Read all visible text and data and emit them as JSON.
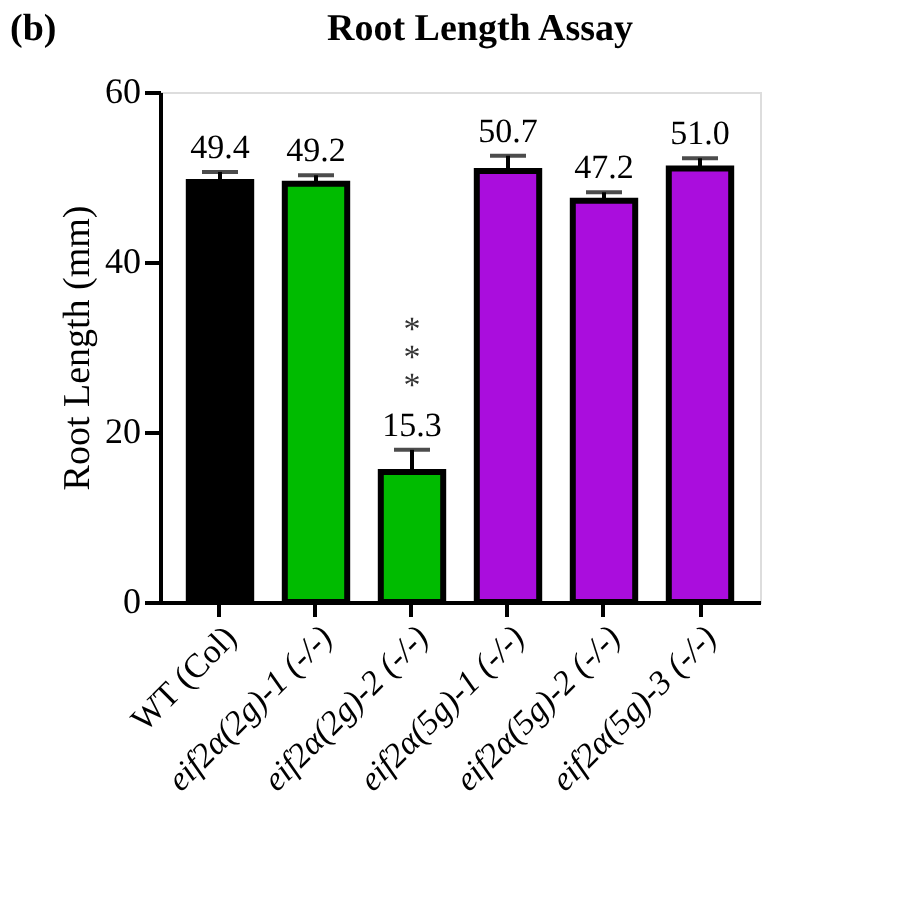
{
  "chart_data": {
    "type": "bar",
    "title": "Root Length Assay",
    "ylabel": "Root Length (mm)",
    "categories": [
      "WT (Col)",
      "eif2α(2g)-1 (-/-)",
      "eif2α(2g)-2 (-/-)",
      "eif2α(5g)-1 (-/-)",
      "eif2α(5g)-2 (-/-)",
      "eif2α(5g)-3 (-/-)"
    ],
    "values": [
      49.4,
      49.2,
      15.3,
      50.7,
      47.2,
      51.0
    ],
    "errors": [
      1.2,
      1.0,
      2.6,
      1.8,
      1.0,
      1.2
    ],
    "colors": [
      "#000000",
      "#00bb00",
      "#00bb00",
      "#aa0ddd",
      "#aa0ddd",
      "#aa0ddd"
    ],
    "value_labels": [
      "49.4",
      "49.2",
      "15.3",
      "50.7",
      "47.2",
      "51.0"
    ],
    "ylim": [
      0,
      60
    ],
    "yticks": [
      0,
      20,
      40,
      60
    ],
    "grid": false,
    "annotations": [
      "(b)",
      {
        "text": "***",
        "x": "eif2α(2g)-2 (-/-)",
        "y": 15.3
      }
    ]
  }
}
